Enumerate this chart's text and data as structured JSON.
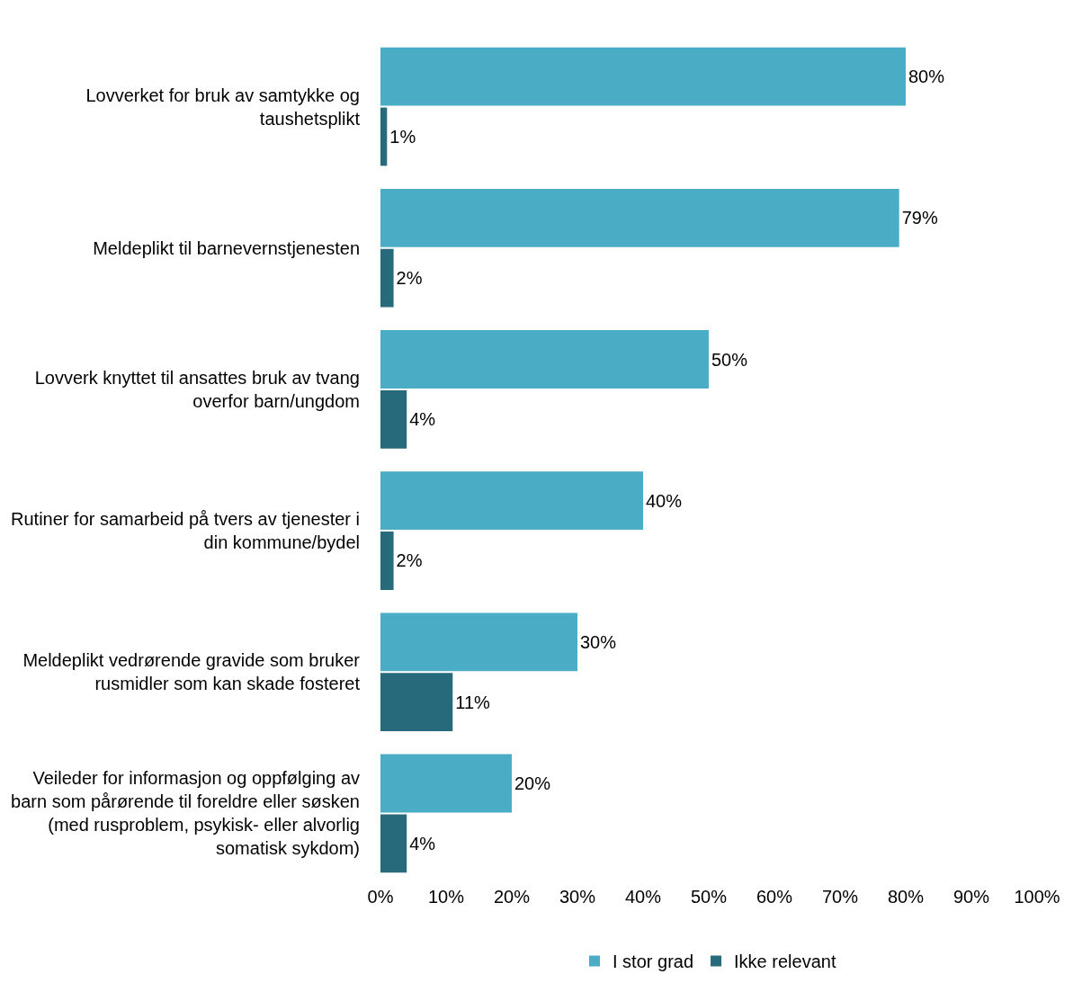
{
  "chart_data": {
    "type": "bar",
    "orientation": "horizontal",
    "categories": [
      "Lovverket for bruk av samtykke og taushetsplikt",
      "Meldeplikt til barnevernstjenesten",
      "Lovverk knyttet til ansattes bruk av tvang overfor barn/ungdom",
      "Rutiner for samarbeid på tvers av tjenester i din kommune/bydel",
      "Meldeplikt vedrørende gravide som bruker rusmidler som kan skade fosteret",
      "Veileder for informasjon og oppfølging av barn som pårørende til foreldre eller søsken (med rusproblem, psykisk- eller alvorlig somatisk sykdom)"
    ],
    "series": [
      {
        "name": "I stor grad",
        "color": "#4bacc6",
        "values": [
          80,
          79,
          50,
          40,
          30,
          20
        ],
        "value_labels": [
          "80%",
          "79%",
          "50%",
          "40%",
          "30%",
          "20%"
        ]
      },
      {
        "name": "Ikke relevant",
        "color": "#276a7c",
        "values": [
          1,
          2,
          4,
          2,
          11,
          4
        ],
        "value_labels": [
          "1%",
          "2%",
          "4%",
          "2%",
          "11%",
          "4%"
        ]
      }
    ],
    "xlim": [
      0,
      100
    ],
    "xticks": [
      {
        "value": 0,
        "label": "0%"
      },
      {
        "value": 10,
        "label": "10%"
      },
      {
        "value": 20,
        "label": "20%"
      },
      {
        "value": 30,
        "label": "30%"
      },
      {
        "value": 40,
        "label": "40%"
      },
      {
        "value": 50,
        "label": "50%"
      },
      {
        "value": 60,
        "label": "60%"
      },
      {
        "value": 70,
        "label": "70%"
      },
      {
        "value": 80,
        "label": "80%"
      },
      {
        "value": 90,
        "label": "90%"
      },
      {
        "value": 100,
        "label": "100%"
      }
    ],
    "legend": "bottom"
  }
}
